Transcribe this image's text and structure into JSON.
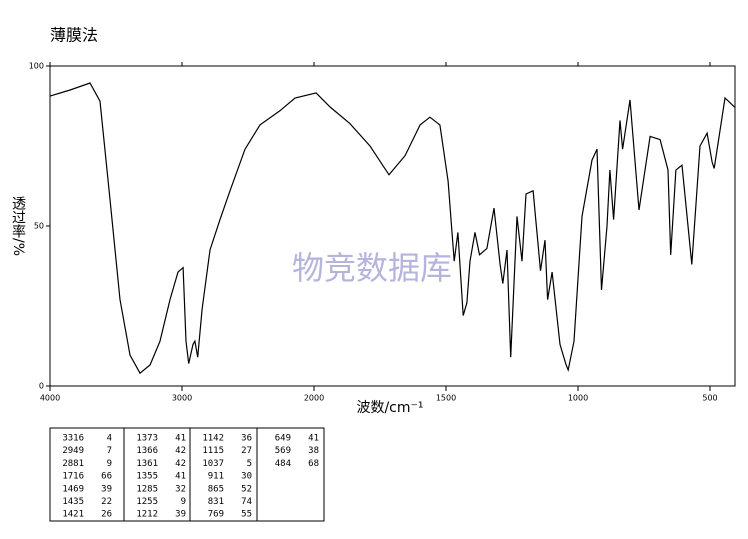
{
  "chart_data": {
    "type": "line",
    "title": "薄膜法",
    "xlabel": "波数/cm⁻¹",
    "ylabel": "透过率/%",
    "watermark": "物竞数据库",
    "xlim": [
      4000,
      400
    ],
    "xticks": [
      4000,
      3000,
      2000,
      1500,
      1000,
      500
    ],
    "ylim": [
      0,
      100
    ],
    "yticks": [
      0,
      50,
      100
    ],
    "x": [
      4000,
      3848,
      3697,
      3621,
      3545,
      3470,
      3394,
      3318,
      3242,
      3167,
      3091,
      3030,
      2992,
      2970,
      2949,
      2917,
      2902,
      2881,
      2848,
      2788,
      2712,
      2636,
      2523,
      2409,
      2258,
      2144,
      1992,
      1939,
      1864,
      1788,
      1716,
      1655,
      1598,
      1561,
      1523,
      1492,
      1469,
      1455,
      1435,
      1421,
      1409,
      1390,
      1373,
      1345,
      1318,
      1295,
      1285,
      1269,
      1255,
      1231,
      1212,
      1197,
      1170,
      1142,
      1125,
      1115,
      1098,
      1068,
      1045,
      1037,
      1015,
      985,
      947,
      928,
      911,
      890,
      879,
      865,
      841,
      831,
      803,
      769,
      727,
      689,
      659,
      649,
      629,
      606,
      569,
      538,
      511,
      492,
      484,
      443,
      405
    ],
    "series": [
      {
        "color": "#000000",
        "values": [
          90.6,
          92.5,
          94.7,
          89,
          58,
          27,
          9.7,
          4,
          6.6,
          14,
          27,
          35.6,
          37,
          14,
          7,
          13,
          14,
          9,
          24,
          42.5,
          52,
          61,
          74,
          81.6,
          86,
          90,
          91.6,
          87.2,
          82,
          75,
          66,
          72,
          81.6,
          84,
          81.6,
          64,
          39,
          48,
          22,
          26,
          39,
          48,
          41,
          43,
          55.6,
          38,
          32,
          42.5,
          9,
          53,
          39,
          60,
          61,
          36,
          45.6,
          27,
          35.6,
          13,
          6.6,
          5,
          14,
          53,
          70.6,
          74,
          30,
          50,
          67.5,
          52,
          83,
          74,
          89.4,
          55,
          78,
          77,
          67.5,
          41,
          67.5,
          69,
          38,
          75,
          79,
          70,
          68,
          90,
          87
        ]
      }
    ]
  },
  "table": {
    "columns": [
      [
        [
          "3316",
          "4"
        ],
        [
          "2949",
          "7"
        ],
        [
          "2881",
          "9"
        ],
        [
          "1716",
          "66"
        ],
        [
          "1469",
          "39"
        ],
        [
          "1435",
          "22"
        ],
        [
          "1421",
          "26"
        ]
      ],
      [
        [
          "1373",
          "41"
        ],
        [
          "1366",
          "42"
        ],
        [
          "1361",
          "42"
        ],
        [
          "1355",
          "41"
        ],
        [
          "1285",
          "32"
        ],
        [
          "1255",
          "9"
        ],
        [
          "1212",
          "39"
        ]
      ],
      [
        [
          "1142",
          "36"
        ],
        [
          "1115",
          "27"
        ],
        [
          "1037",
          "5"
        ],
        [
          "911",
          "30"
        ],
        [
          "865",
          "52"
        ],
        [
          "831",
          "74"
        ],
        [
          "769",
          "55"
        ]
      ],
      [
        [
          "649",
          "41"
        ],
        [
          "569",
          "38"
        ],
        [
          "484",
          "68"
        ]
      ]
    ]
  }
}
